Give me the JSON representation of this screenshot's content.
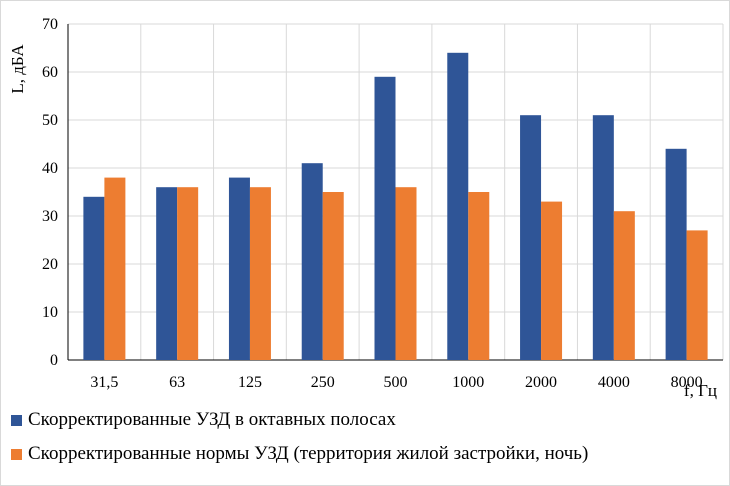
{
  "chart_data": {
    "type": "bar",
    "ylabel": "L, дБА",
    "xlabel": "f, Гц",
    "ylim": [
      0,
      70
    ],
    "yticks": [
      0,
      10,
      20,
      30,
      40,
      50,
      60,
      70
    ],
    "grid": true,
    "legend_position": "bottom",
    "categories": [
      "31,5",
      "63",
      "125",
      "250",
      "500",
      "1000",
      "2000",
      "4000",
      "8000"
    ],
    "series": [
      {
        "name": "Скорректированные УЗД в октавных полосах",
        "color": "#2f5597",
        "values": [
          34,
          36,
          38,
          41,
          59,
          64,
          51,
          51,
          44
        ]
      },
      {
        "name": "Скорректированные нормы УЗД (территория жилой застройки, ночь)",
        "color": "#ed7d31",
        "values": [
          38,
          36,
          36,
          35,
          36,
          35,
          33,
          31,
          27
        ]
      }
    ]
  }
}
